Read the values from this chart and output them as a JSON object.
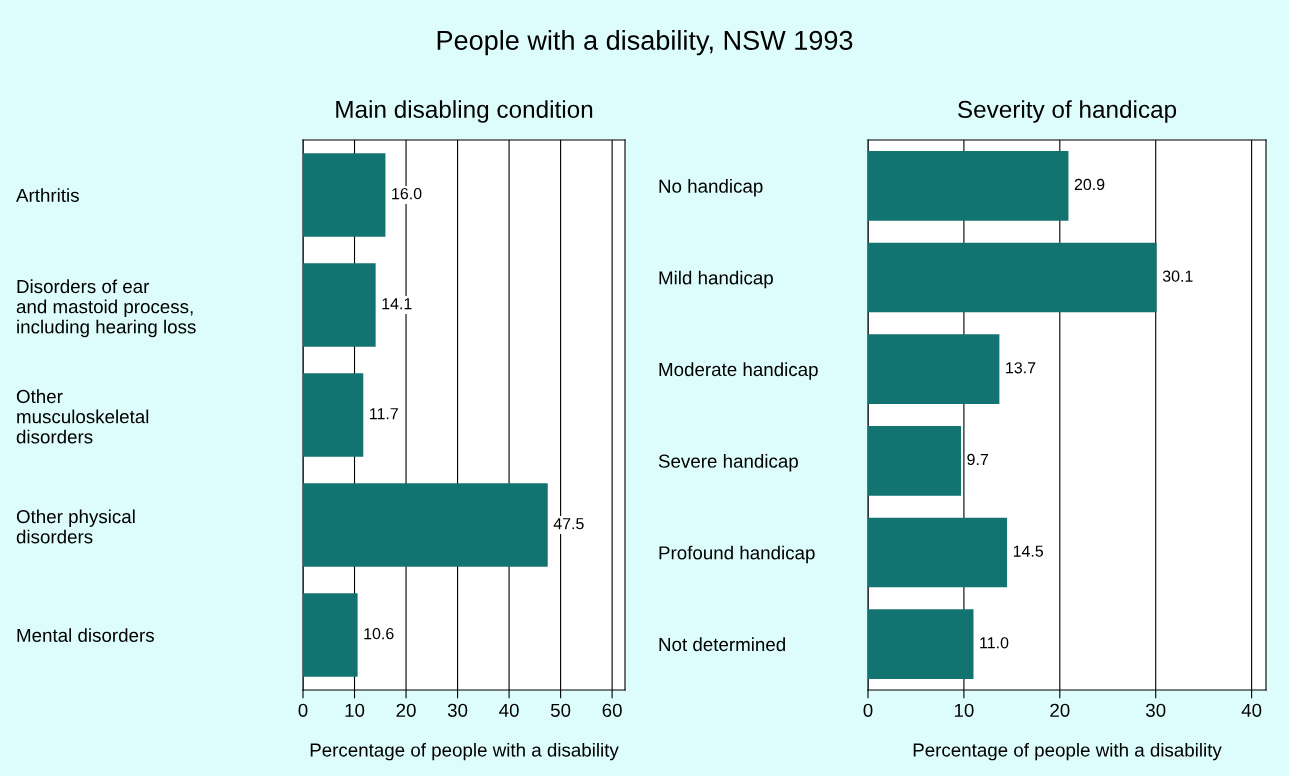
{
  "chart_data": [
    {
      "type": "bar",
      "orientation": "horizontal",
      "title": "Main disabling condition",
      "xlabel": "Percentage of people with a disability",
      "annotations": [
        "People with a disability, NSW 1993"
      ],
      "categories": [
        "Arthritis",
        "Disorders of ear\nand mastoid process,\nincluding hearing loss",
        "Other\nmusculoskeletal\ndisorders",
        "Other physical\ndisorders",
        "Mental disorders"
      ],
      "values": [
        16.0,
        14.1,
        11.7,
        47.5,
        10.6
      ],
      "color": "#137370",
      "xlim": [
        0,
        62.5
      ],
      "xticks": [
        0,
        10,
        20,
        30,
        40,
        50,
        60
      ],
      "grid": "x",
      "value_labels": [
        "16.0",
        "14.1",
        "11.7",
        "47.5",
        "10.6"
      ]
    },
    {
      "type": "bar",
      "orientation": "horizontal",
      "title": "Severity of handicap",
      "xlabel": "Percentage of people with a disability",
      "categories": [
        "No handicap",
        "Mild handicap",
        "Moderate handicap",
        "Severe handicap",
        "Profound handicap",
        "Not determined"
      ],
      "values": [
        20.9,
        30.1,
        13.7,
        9.7,
        14.5,
        11.0
      ],
      "color": "#137370",
      "xlim": [
        0,
        41.5
      ],
      "xticks": [
        0,
        10,
        20,
        30,
        40
      ],
      "grid": "x",
      "value_labels": [
        "20.9",
        "30.1",
        "13.7",
        "9.7",
        "14.5",
        "11.0"
      ]
    }
  ]
}
